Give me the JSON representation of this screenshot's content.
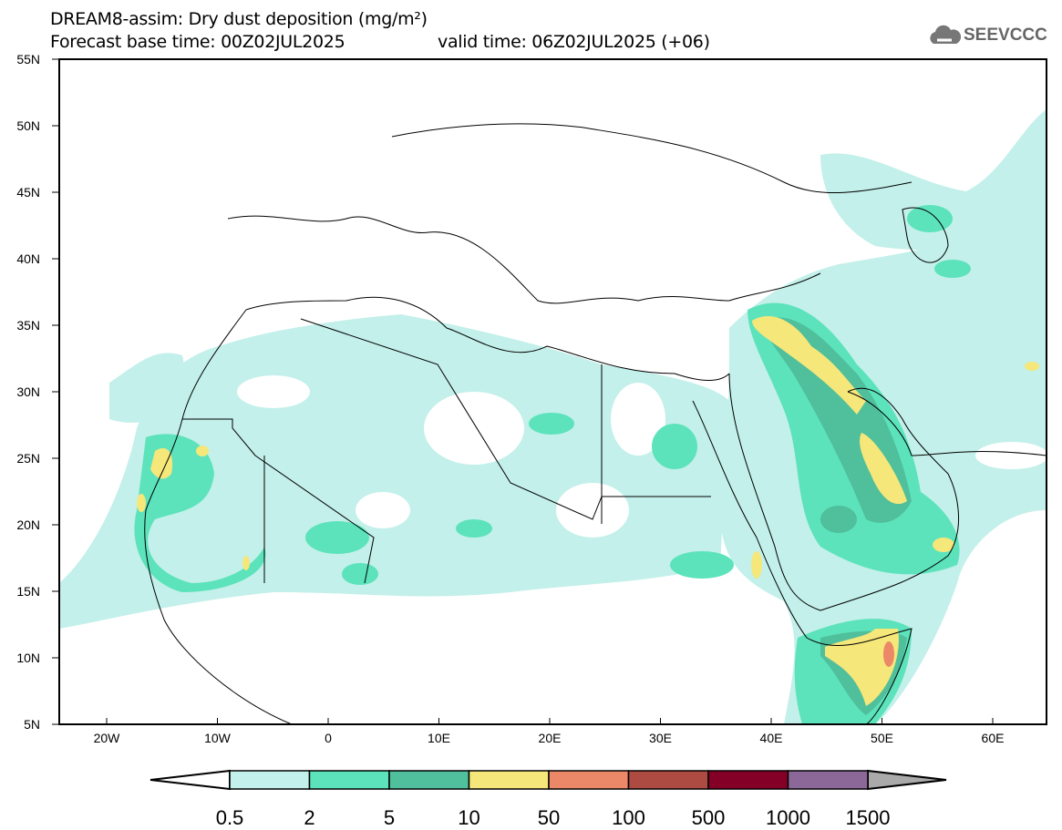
{
  "title": "DREAM8-assim: Dry dust deposition (mg/m²)",
  "subtitle_base": "Forecast base time: 00Z02JUL2025",
  "subtitle_valid": "valid time: 06Z02JUL2025 (+06)",
  "logo": "SEEVCCC",
  "lat_labels": [
    "55N",
    "50N",
    "45N",
    "40N",
    "35N",
    "30N",
    "25N",
    "20N",
    "15N",
    "10N",
    "5N"
  ],
  "lon_labels": [
    "20W",
    "10W",
    "0",
    "10E",
    "20E",
    "30E",
    "40E",
    "50E",
    "60E"
  ],
  "colorbar": {
    "levels": [
      "0.5",
      "2",
      "5",
      "10",
      "50",
      "100",
      "500",
      "1000",
      "1500"
    ],
    "colors": [
      "#c3f0ea",
      "#5ce3bb",
      "#50bf9b",
      "#f5e77a",
      "#ec8868",
      "#ad4a42",
      "#850027",
      "#8c6898"
    ],
    "over_color": "#aaaaaa"
  }
}
